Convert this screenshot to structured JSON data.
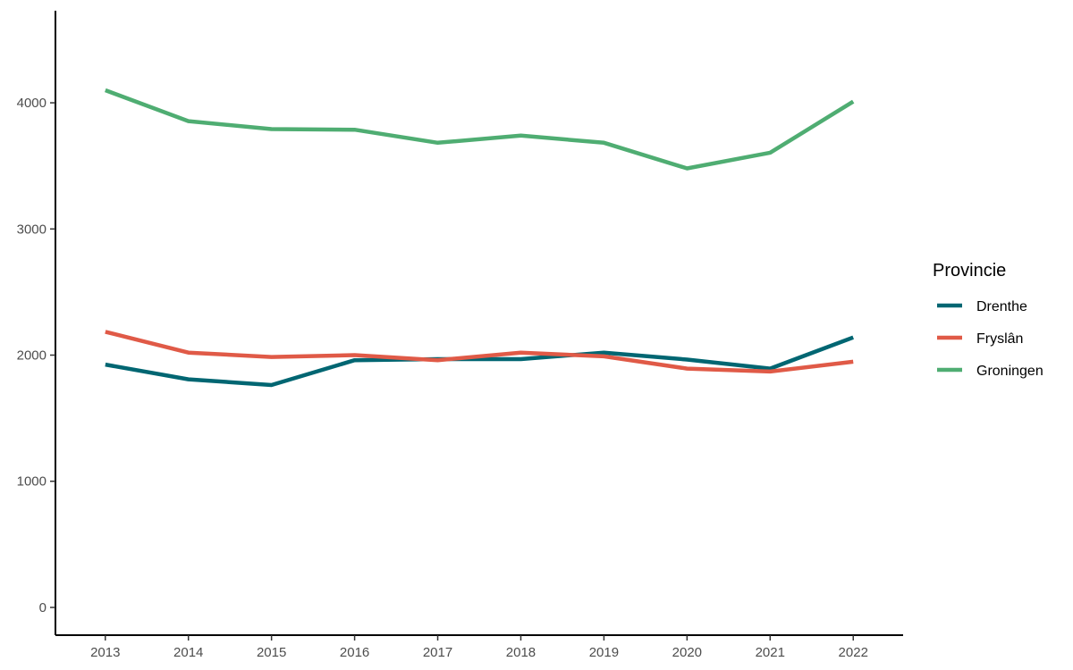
{
  "chart_data": {
    "type": "line",
    "title": "",
    "xlabel": "",
    "ylabel": "",
    "x": [
      2013,
      2014,
      2015,
      2016,
      2017,
      2018,
      2019,
      2020,
      2021,
      2022
    ],
    "x_tick_labels": [
      "2013",
      "2014",
      "2015",
      "2016",
      "2017",
      "2018",
      "2019",
      "2020",
      "2021",
      "2022"
    ],
    "y_ticks": [
      0,
      1000,
      2000,
      3000,
      4000
    ],
    "y_tick_labels": [
      "0",
      "1000",
      "2000",
      "3000",
      "4000"
    ],
    "ylim": [
      -220,
      4730
    ],
    "xlim": [
      2012.4,
      2022.6
    ],
    "grid": false,
    "legend": {
      "title": "Provincie",
      "position": "right"
    },
    "series": [
      {
        "name": "Drenthe",
        "color": "#006672",
        "values": [
          1925,
          1808,
          1763,
          1960,
          1968,
          1968,
          2020,
          1965,
          1893,
          2140
        ]
      },
      {
        "name": "Fryslân",
        "color": "#E05A47",
        "values": [
          2185,
          2020,
          1985,
          2000,
          1960,
          2020,
          1990,
          1893,
          1870,
          1948
        ]
      },
      {
        "name": "Groningen",
        "color": "#4FAD72",
        "values": [
          4100,
          3855,
          3792,
          3787,
          3683,
          3740,
          3683,
          3480,
          3605,
          4010
        ]
      }
    ]
  }
}
